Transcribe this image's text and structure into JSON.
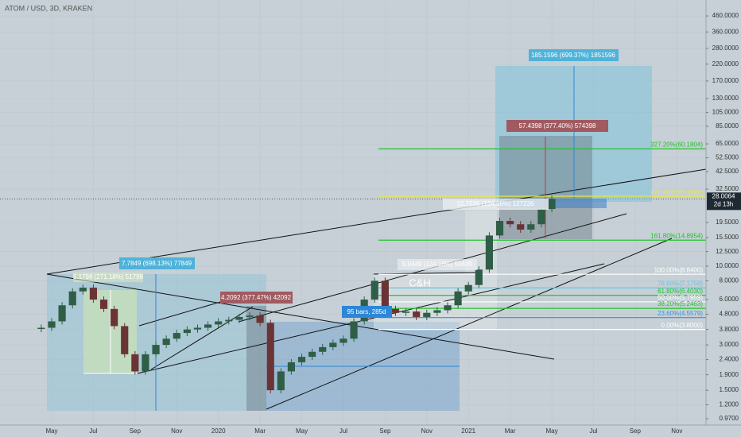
{
  "chart_data": {
    "type": "candlestick",
    "title": "ATOM / USD, 3D, KRAKEN",
    "log_scale": true,
    "up_color": "#2f5e46",
    "down_color": "#6b3434",
    "xlim": [
      -2.48,
      31.4
    ],
    "ylim": [
      0.88,
      587
    ],
    "x": [
      -0.5,
      0,
      0.5,
      1,
      1.5,
      2,
      2.5,
      3,
      3.5,
      4,
      4.5,
      5,
      5.5,
      6,
      6.5,
      7,
      7.5,
      8,
      8.5,
      9,
      9.5,
      10,
      10.5,
      11,
      11.5,
      12,
      12.5,
      13,
      13.5,
      14,
      14.5,
      15,
      15.5,
      16,
      16.5,
      17,
      17.5,
      18,
      18.5,
      19,
      19.5,
      20,
      20.5,
      21,
      21.5,
      22,
      22.5,
      23,
      23.5,
      24
    ],
    "values": [
      3.9,
      4.3,
      5.5,
      6.8,
      7.2,
      6.0,
      5.2,
      4.0,
      2.6,
      2.0,
      2.6,
      3.0,
      3.3,
      3.6,
      3.8,
      3.9,
      4.1,
      4.3,
      4.4,
      4.6,
      4.7,
      4.2,
      1.5,
      2.0,
      2.3,
      2.5,
      2.7,
      2.9,
      3.1,
      3.3,
      4.3,
      6.0,
      8.0,
      5.2,
      4.9,
      5.0,
      4.6,
      4.9,
      5.1,
      5.5,
      6.8,
      7.5,
      9.5,
      16,
      20,
      19,
      17.5,
      19,
      24,
      28
    ],
    "xticks": [
      {
        "value": 0,
        "label": "May"
      },
      {
        "value": 2,
        "label": "Jul"
      },
      {
        "value": 4,
        "label": "Sep"
      },
      {
        "value": 6,
        "label": "Nov"
      },
      {
        "value": 8,
        "label": "2020"
      },
      {
        "value": 10,
        "label": "Mar"
      },
      {
        "value": 12,
        "label": "May"
      },
      {
        "value": 14,
        "label": "Jul"
      },
      {
        "value": 16,
        "label": "Sep"
      },
      {
        "value": 18,
        "label": "Nov"
      },
      {
        "value": 20,
        "label": "2021"
      },
      {
        "value": 22,
        "label": "Mar"
      },
      {
        "value": 24,
        "label": "May"
      },
      {
        "value": 26,
        "label": "Jul"
      },
      {
        "value": 28,
        "label": "Sep"
      },
      {
        "value": 30,
        "label": "Nov"
      }
    ],
    "yticks": [
      {
        "value": 460,
        "label": "460.0000"
      },
      {
        "value": 360,
        "label": "360.0000"
      },
      {
        "value": 280,
        "label": "280.0000"
      },
      {
        "value": 220,
        "label": "220.0000"
      },
      {
        "value": 170,
        "label": "170.0000"
      },
      {
        "value": 130,
        "label": "130.0000"
      },
      {
        "value": 105,
        "label": "105.0000"
      },
      {
        "value": 85,
        "label": "85.0000"
      },
      {
        "value": 65,
        "label": "65.0000"
      },
      {
        "value": 52.5,
        "label": "52.5000"
      },
      {
        "value": 42.5,
        "label": "42.5000"
      },
      {
        "value": 32.5,
        "label": "32.5000"
      },
      {
        "value": 19.5,
        "label": "19.5000"
      },
      {
        "value": 15.5,
        "label": "15.5000"
      },
      {
        "value": 12.5,
        "label": "12.5000"
      },
      {
        "value": 10,
        "label": "10.0000"
      },
      {
        "value": 8,
        "label": "8.0000"
      },
      {
        "value": 6,
        "label": "6.0000"
      },
      {
        "value": 4.8,
        "label": "4.8000"
      },
      {
        "value": 3.8,
        "label": "3.8000"
      },
      {
        "value": 3,
        "label": "3.0000"
      },
      {
        "value": 2.4,
        "label": "2.4000"
      },
      {
        "value": 1.9,
        "label": "1.9000"
      },
      {
        "value": 1.5,
        "label": "1.5000"
      },
      {
        "value": 1.2,
        "label": "1.2000"
      },
      {
        "value": 0.97,
        "label": "0.9700"
      }
    ],
    "fib_levels": [
      {
        "value": 60.1804,
        "label": "327.20%(60.1804)",
        "color": "#22c32a"
      },
      {
        "value": 29.1686,
        "label": "241.40%(29.1686)",
        "color": "#e8e83a"
      },
      {
        "value": 14.8954,
        "label": "161.80%(14.8954)",
        "color": "#22c32a"
      },
      {
        "value": 8.84,
        "label": "100.00%(8.8400)",
        "color": "#ffffff"
      },
      {
        "value": 7.1758,
        "label": "78.60%(7.1758)",
        "color": "#5fc8e0"
      },
      {
        "value": 6.403,
        "label": "61.80%(6.4030)",
        "color": "#22c32a"
      },
      {
        "value": 5.7959,
        "label": "50.00%(5.7959)",
        "color": "#ffffff"
      },
      {
        "value": 5.2463,
        "label": "38.20%(5.2463)",
        "color": "#22c32a"
      },
      {
        "value": 4.5579,
        "label": "23.60%(4.5579)",
        "color": "#3d8fe0"
      },
      {
        "value": 3.8,
        "label": "0.00%(3.8000)",
        "color": "#ffffff"
      }
    ],
    "annotations": [
      "185.1596 (699.37%) 1851596",
      "57.4398 (377.40%) 574398",
      "12.7236 (134.16%) 127236",
      "5.0449 (134.16%) 50449",
      "7.7849 (698.13%) 77849",
      "5.1798 (271.18%) 51798",
      "4.2092 (377.47%) 42092",
      "95 bars, 285d",
      "C&H"
    ],
    "last_price": 28.0064,
    "countdown": "2d 13h"
  }
}
